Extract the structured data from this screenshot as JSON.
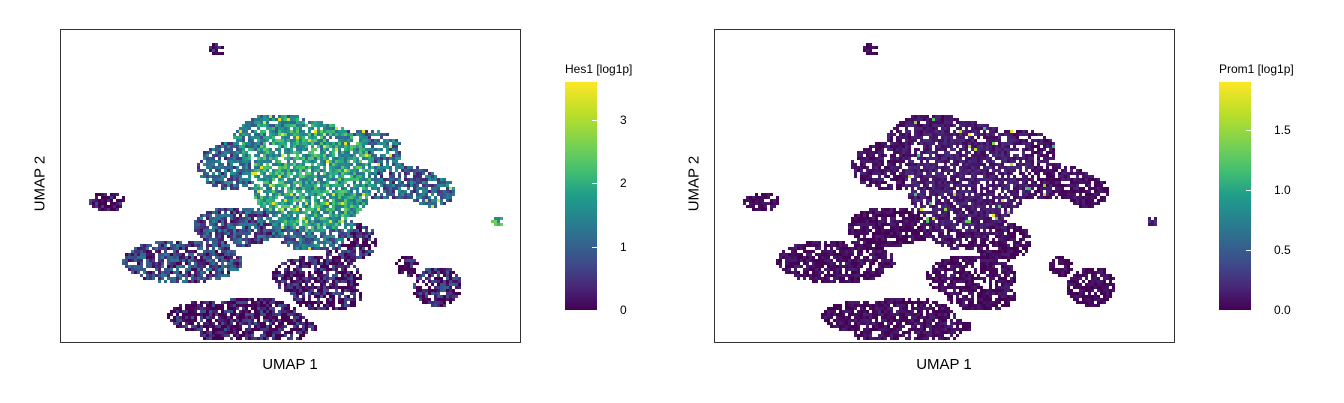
{
  "chart_data": [
    {
      "type": "scatter",
      "xlabel": "UMAP 1",
      "ylabel": "UMAP 2",
      "colorbar": {
        "title": "Hes1 [log1p]",
        "range": [
          0,
          3.6
        ],
        "ticks": [
          "0",
          "1",
          "2",
          "3"
        ],
        "tick_values": [
          0,
          1,
          2,
          3
        ],
        "colormap": "viridis"
      },
      "high_expression_regions": [
        "upper-center cluster",
        "right-middle branch",
        "far-right small cluster"
      ]
    },
    {
      "type": "scatter",
      "xlabel": "UMAP 1",
      "ylabel": "UMAP 2",
      "colorbar": {
        "title": "Prom1 [log1p]",
        "range": [
          0,
          1.9
        ],
        "ticks": [
          "0.0",
          "0.5",
          "1.0",
          "1.5"
        ],
        "tick_values": [
          0,
          0.5,
          1.0,
          1.5
        ],
        "colormap": "viridis"
      },
      "high_expression_regions": [
        "upper-center cluster (sparse)"
      ]
    }
  ]
}
